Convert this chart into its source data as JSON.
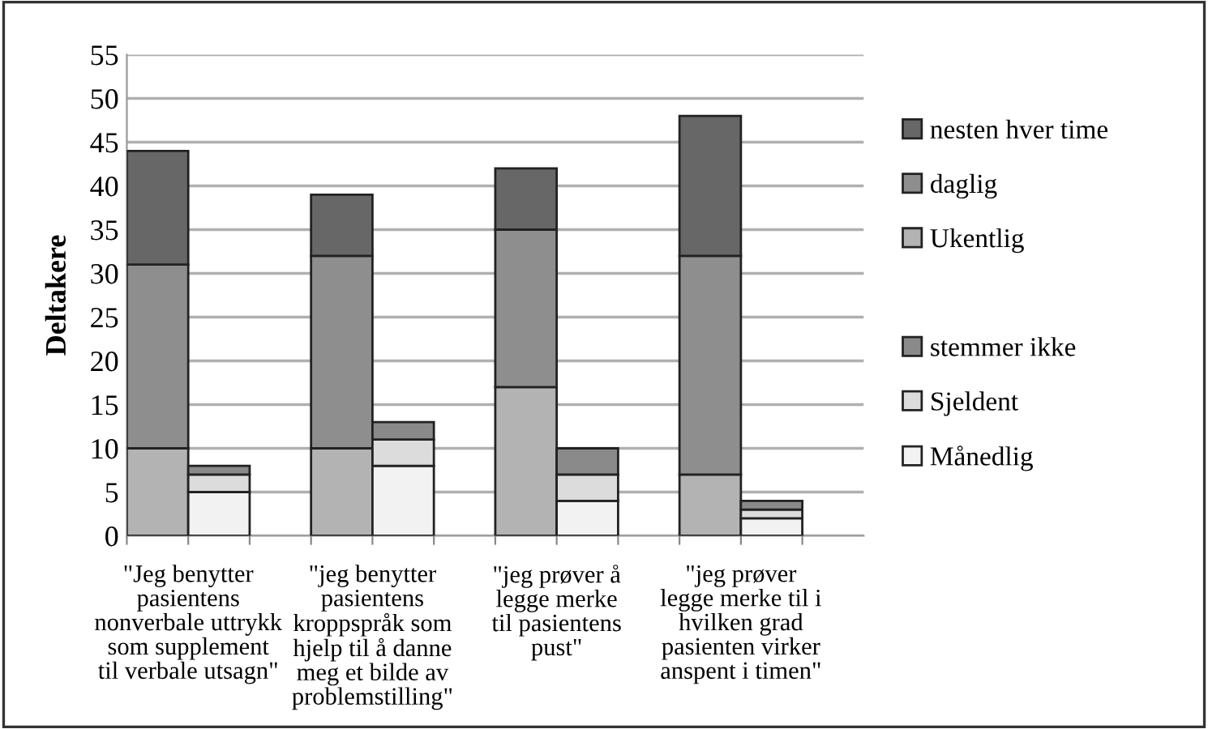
{
  "chart_data": {
    "type": "bar",
    "stacked": true,
    "ylabel": "Deltakere",
    "categories": [
      "\"Jeg benytter\npasientens\nnonverbale uttrykk\nsom supplement\ntil verbale utsagn\"",
      null,
      null,
      "\"jeg benytter\npasientens\nkroppspråk som\nhjelp til å danne\nmeg et bilde av\nproblemstilling\"",
      null,
      null,
      "\"jeg prøver å\nlegge merke\ntil pasientens\npust\"",
      null,
      null,
      "\"jeg prøver\nlegge merke til i\nhvilken grad\npasienten virker\nanspent i timen\"",
      null,
      null
    ],
    "series": [
      {
        "name": "Ukentlig",
        "color": "#b3b3b3",
        "values": [
          10,
          null,
          null,
          10,
          null,
          null,
          17,
          null,
          null,
          7,
          null,
          null
        ]
      },
      {
        "name": "daglig",
        "color": "#8e8e8e",
        "values": [
          21,
          null,
          null,
          22,
          null,
          null,
          18,
          null,
          null,
          25,
          null,
          null
        ]
      },
      {
        "name": "nesten hver time",
        "color": "#676767",
        "values": [
          13,
          null,
          null,
          7,
          null,
          null,
          7,
          null,
          null,
          16,
          null,
          null
        ]
      },
      {
        "name": "Månedlig",
        "color": "#f2f2f2",
        "values": [
          null,
          5,
          null,
          null,
          8,
          null,
          null,
          4,
          null,
          null,
          2,
          null
        ]
      },
      {
        "name": "Sjeldent",
        "color": "#dcdcdc",
        "values": [
          null,
          2,
          null,
          null,
          3,
          null,
          null,
          3,
          null,
          null,
          1,
          null
        ]
      },
      {
        "name": "stemmer ikke",
        "color": "#8a8a8a",
        "values": [
          null,
          1,
          null,
          null,
          2,
          null,
          null,
          3,
          null,
          null,
          1,
          null
        ]
      }
    ],
    "ylim": [
      0,
      55
    ],
    "yticks": [
      0,
      5,
      10,
      15,
      20,
      25,
      30,
      35,
      40,
      45,
      50,
      55
    ],
    "grid": "y",
    "legend": "right"
  }
}
